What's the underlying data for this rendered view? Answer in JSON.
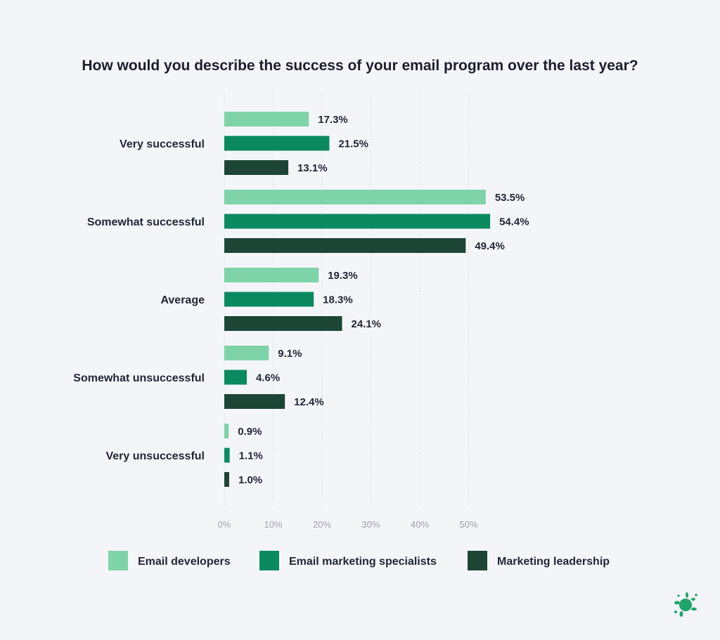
{
  "chart_data": {
    "type": "bar",
    "orientation": "horizontal",
    "title": "How would you describe the success of your email program over the last year?",
    "categories": [
      "Very successful",
      "Somewhat successful",
      "Average",
      "Somewhat unsuccessful",
      "Very unsuccessful"
    ],
    "series": [
      {
        "name": "Email developers",
        "color": "#7fd3a8",
        "values": [
          17.3,
          53.5,
          19.3,
          9.1,
          0.9
        ]
      },
      {
        "name": "Email marketing specialists",
        "color": "#0b8a5f",
        "values": [
          21.5,
          54.4,
          18.3,
          4.6,
          1.1
        ]
      },
      {
        "name": "Marketing leadership",
        "color": "#1c4536",
        "values": [
          13.1,
          49.4,
          24.1,
          12.4,
          1.0
        ]
      }
    ],
    "xlim": [
      0,
      55
    ],
    "xticks": [
      0,
      10,
      20,
      30,
      40,
      50
    ],
    "tick_suffix": "%",
    "value_suffix": "%",
    "grid": true,
    "legend_position": "bottom"
  },
  "logo": {
    "name": "splat-logo-icon",
    "color": "#1fa56a"
  }
}
